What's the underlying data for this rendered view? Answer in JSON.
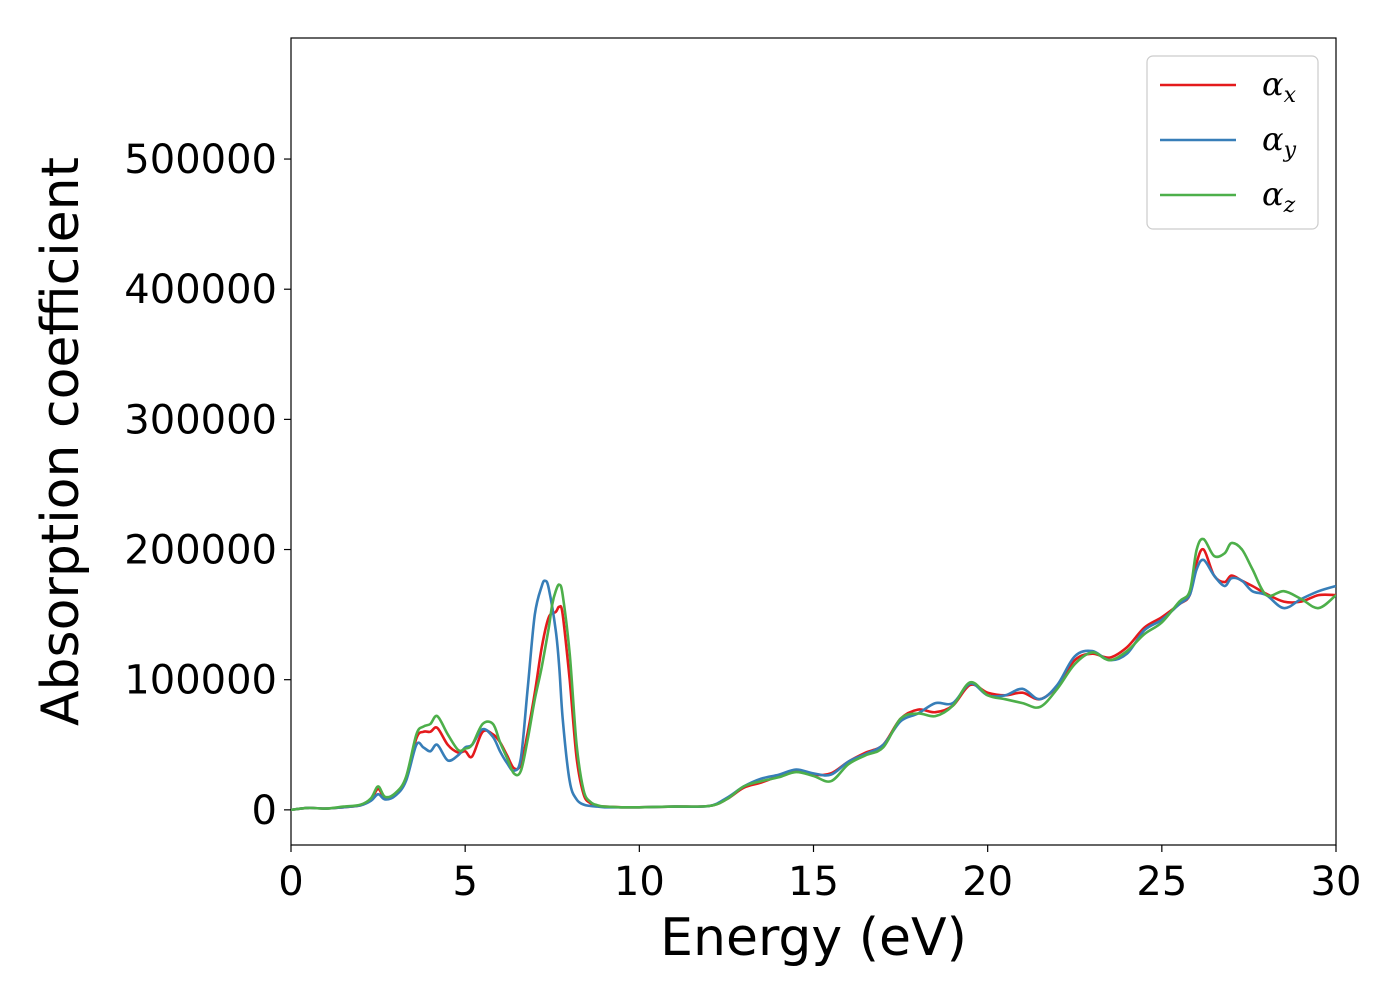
{
  "chart_data": {
    "type": "line",
    "xlabel": "Energy (eV)",
    "ylabel": "Absorption coefficient",
    "xlim": [
      0,
      30
    ],
    "ylim": [
      -27000,
      593000
    ],
    "xticks": [
      0,
      5,
      10,
      15,
      20,
      25,
      30
    ],
    "yticks": [
      0,
      100000,
      200000,
      300000,
      400000,
      500000
    ],
    "grid": false,
    "legend_position": "top-right",
    "series": [
      {
        "name": "α",
        "sub": "x",
        "color": "#e41a1c",
        "x": [
          0,
          0.5,
          1.0,
          1.5,
          2.0,
          2.3,
          2.5,
          2.7,
          3.0,
          3.3,
          3.6,
          3.8,
          4.0,
          4.2,
          4.5,
          4.8,
          5.0,
          5.2,
          5.5,
          5.8,
          6.0,
          6.2,
          6.4,
          6.6,
          6.8,
          7.0,
          7.2,
          7.4,
          7.6,
          7.7,
          7.8,
          8.0,
          8.2,
          8.4,
          8.6,
          8.8,
          9.0,
          9.5,
          10.0,
          11.0,
          12.0,
          12.5,
          13.0,
          13.5,
          14.0,
          14.5,
          15.0,
          15.5,
          16.0,
          16.5,
          17.0,
          17.5,
          18.0,
          18.5,
          19.0,
          19.5,
          20.0,
          20.5,
          21.0,
          21.5,
          22.0,
          22.5,
          23.0,
          23.5,
          24.0,
          24.5,
          25.0,
          25.5,
          25.8,
          26.0,
          26.2,
          26.5,
          26.8,
          27.0,
          27.3,
          27.6,
          28.0,
          28.5,
          29.0,
          29.5,
          30.0
        ],
        "y": [
          0,
          1500,
          1000,
          2000,
          3500,
          8000,
          16000,
          9000,
          12000,
          24000,
          55000,
          60000,
          60000,
          63000,
          50000,
          44000,
          45000,
          41000,
          60000,
          58000,
          52000,
          42000,
          32000,
          35000,
          60000,
          90000,
          125000,
          148000,
          152000,
          156000,
          150000,
          100000,
          40000,
          12000,
          5000,
          3000,
          2500,
          2000,
          2000,
          2500,
          3000,
          8000,
          17000,
          21000,
          26000,
          30000,
          27000,
          28000,
          37000,
          44000,
          50000,
          70000,
          77000,
          75000,
          80000,
          96000,
          90000,
          88000,
          90000,
          85000,
          95000,
          115000,
          120000,
          117000,
          125000,
          140000,
          148000,
          158000,
          165000,
          190000,
          200000,
          180000,
          175000,
          180000,
          176000,
          172000,
          166000,
          160000,
          160000,
          165000,
          165000
        ]
      },
      {
        "name": "α",
        "sub": "y",
        "color": "#377eb8",
        "x": [
          0,
          0.5,
          1.0,
          1.5,
          2.0,
          2.3,
          2.5,
          2.7,
          3.0,
          3.3,
          3.6,
          3.8,
          4.0,
          4.2,
          4.5,
          4.8,
          5.0,
          5.2,
          5.5,
          5.8,
          6.0,
          6.2,
          6.4,
          6.6,
          6.8,
          7.0,
          7.2,
          7.3,
          7.4,
          7.6,
          7.7,
          7.8,
          8.0,
          8.2,
          8.4,
          8.6,
          8.8,
          9.0,
          9.5,
          10.0,
          11.0,
          12.0,
          12.5,
          13.0,
          13.5,
          14.0,
          14.5,
          15.0,
          15.5,
          16.0,
          16.5,
          17.0,
          17.5,
          18.0,
          18.5,
          19.0,
          19.5,
          20.0,
          20.5,
          21.0,
          21.5,
          22.0,
          22.5,
          23.0,
          23.5,
          24.0,
          24.5,
          25.0,
          25.5,
          25.8,
          26.0,
          26.2,
          26.5,
          26.8,
          27.0,
          27.3,
          27.6,
          28.0,
          28.5,
          29.0,
          29.5,
          30.0
        ],
        "y": [
          0,
          1500,
          1000,
          2000,
          3500,
          7000,
          12000,
          8000,
          11000,
          22000,
          50000,
          48000,
          45000,
          50000,
          38000,
          42000,
          48000,
          50000,
          62000,
          56000,
          45000,
          36000,
          30000,
          40000,
          95000,
          150000,
          172000,
          176000,
          170000,
          138000,
          110000,
          70000,
          22000,
          8000,
          4000,
          3000,
          2500,
          2000,
          2000,
          2000,
          2500,
          3000,
          9000,
          18000,
          24000,
          27000,
          31000,
          28000,
          27000,
          37000,
          43000,
          50000,
          68000,
          74000,
          82000,
          82000,
          97000,
          88000,
          88000,
          93000,
          85000,
          96000,
          118000,
          122000,
          115000,
          120000,
          138000,
          146000,
          158000,
          165000,
          185000,
          192000,
          180000,
          172000,
          178000,
          176000,
          168000,
          165000,
          155000,
          162000,
          168000,
          172000
        ]
      },
      {
        "name": "α",
        "sub": "z",
        "color": "#4daf4a",
        "x": [
          0,
          0.5,
          1.0,
          1.5,
          2.0,
          2.3,
          2.5,
          2.7,
          3.0,
          3.3,
          3.6,
          3.8,
          4.0,
          4.2,
          4.5,
          4.8,
          5.0,
          5.2,
          5.5,
          5.8,
          6.0,
          6.2,
          6.4,
          6.6,
          6.8,
          7.0,
          7.2,
          7.4,
          7.5,
          7.6,
          7.7,
          7.8,
          8.0,
          8.2,
          8.4,
          8.6,
          8.8,
          9.0,
          9.5,
          10.0,
          11.0,
          12.0,
          12.5,
          13.0,
          13.5,
          14.0,
          14.5,
          15.0,
          15.5,
          16.0,
          16.5,
          17.0,
          17.5,
          18.0,
          18.5,
          19.0,
          19.5,
          20.0,
          20.5,
          21.0,
          21.5,
          22.0,
          22.5,
          23.0,
          23.5,
          24.0,
          24.5,
          25.0,
          25.5,
          25.8,
          26.0,
          26.2,
          26.5,
          26.8,
          27.0,
          27.3,
          27.6,
          28.0,
          28.5,
          29.0,
          29.5,
          30.0
        ],
        "y": [
          0,
          1500,
          1000,
          2500,
          4000,
          9000,
          18000,
          10000,
          13000,
          25000,
          58000,
          64000,
          66000,
          72000,
          58000,
          46000,
          47000,
          50000,
          66000,
          66000,
          52000,
          40000,
          28000,
          30000,
          55000,
          85000,
          110000,
          140000,
          158000,
          168000,
          173000,
          165000,
          120000,
          50000,
          15000,
          6000,
          3500,
          2500,
          2000,
          2000,
          2500,
          3000,
          8000,
          18000,
          22000,
          25000,
          29000,
          26000,
          22000,
          35000,
          42000,
          48000,
          70000,
          74000,
          72000,
          80000,
          98000,
          88000,
          85000,
          82000,
          79000,
          93000,
          112000,
          121000,
          115000,
          122000,
          135000,
          144000,
          160000,
          168000,
          200000,
          208000,
          195000,
          197000,
          205000,
          200000,
          185000,
          165000,
          168000,
          162000,
          155000,
          165000
        ]
      }
    ]
  }
}
